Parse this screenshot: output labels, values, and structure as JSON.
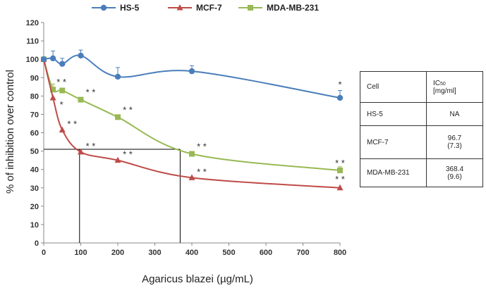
{
  "chart_data": {
    "type": "line",
    "xlabel": "Agaricus blazei (µg/mL)",
    "ylabel": "% of inhibition over control",
    "xlim": [
      0,
      800
    ],
    "ylim": [
      0,
      120
    ],
    "x_ticks": [
      0,
      100,
      200,
      300,
      400,
      500,
      600,
      700,
      800
    ],
    "y_ticks": [
      0,
      10,
      20,
      30,
      40,
      50,
      60,
      70,
      80,
      90,
      100,
      110,
      120
    ],
    "grid": false,
    "legend_position": "top",
    "series": [
      {
        "name": "HS-5",
        "color": "#4a7ebb",
        "marker": "circle",
        "x": [
          0,
          25,
          50,
          100,
          200,
          400,
          800
        ],
        "y": [
          100,
          100.5,
          97.5,
          102,
          90.5,
          93.5,
          79
        ],
        "err": [
          0,
          4,
          3,
          3,
          5,
          3,
          4
        ],
        "annotations": [
          "",
          "",
          "",
          "",
          "",
          "",
          "*"
        ]
      },
      {
        "name": "MCF-7",
        "color": "#be4b48",
        "marker": "triangle",
        "x": [
          0,
          25,
          50,
          100,
          200,
          400,
          800
        ],
        "y": [
          100,
          79,
          61.5,
          49.5,
          45,
          35.5,
          30
        ],
        "err": [
          0,
          0,
          0,
          0,
          0,
          0,
          0
        ],
        "annotations": [
          "",
          "*",
          "* *",
          "* *",
          "* *",
          "* *",
          "* *"
        ]
      },
      {
        "name": "MDA-MB-231",
        "color": "#98b954",
        "marker": "square",
        "x": [
          0,
          25,
          50,
          100,
          200,
          400,
          800
        ],
        "y": [
          100,
          83.5,
          83,
          78,
          68.5,
          48.5,
          39.5
        ],
        "err": [
          0,
          3,
          0,
          0,
          0,
          0,
          2
        ],
        "annotations": [
          "",
          "* *",
          "",
          "* *",
          "* *",
          "* *",
          "* *"
        ]
      }
    ],
    "ic50_guides": {
      "y": 51,
      "x_markers": [
        96.7,
        368.4
      ]
    }
  },
  "table": {
    "header": {
      "cell": "Cell",
      "ic50_main": "IC",
      "ic50_sub": "50",
      "ic50_unit": "[mg/ml]"
    },
    "rows": [
      {
        "cell": "HS-5",
        "value": "NA",
        "sd": ""
      },
      {
        "cell": "MCF-7",
        "value": "96.7",
        "sd": "(7.3)"
      },
      {
        "cell": "MDA-MB-231",
        "value": "368.4",
        "sd": "(9.6)"
      }
    ]
  }
}
